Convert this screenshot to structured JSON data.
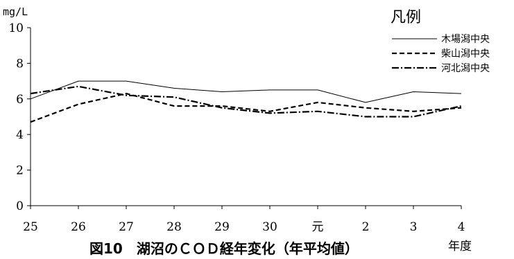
{
  "chart_data": {
    "type": "line",
    "title": "図10　湖沼のＣＯＤ経年変化（年平均値）",
    "ylabel": "mg/L",
    "xlabel": "年度",
    "ylim": [
      0,
      10
    ],
    "yticks": [
      0,
      2,
      4,
      6,
      8,
      10
    ],
    "grid": false,
    "legend_title": "凡例",
    "legend_position": "top-right",
    "categories": [
      "25",
      "26",
      "27",
      "28",
      "29",
      "30",
      "元",
      "2",
      "3",
      "4"
    ],
    "series": [
      {
        "name": "木場潟中央",
        "style": "solid",
        "color": "#000000",
        "values": [
          6.0,
          7.0,
          7.0,
          6.6,
          6.4,
          6.5,
          6.5,
          5.8,
          6.4,
          6.3
        ]
      },
      {
        "name": "柴山潟中央",
        "style": "dashed",
        "color": "#000000",
        "values": [
          4.7,
          5.7,
          6.3,
          5.6,
          5.6,
          5.3,
          5.8,
          5.5,
          5.3,
          5.5
        ]
      },
      {
        "name": "河北潟中央",
        "style": "dashdot",
        "color": "#000000",
        "values": [
          6.3,
          6.7,
          6.2,
          6.1,
          5.5,
          5.2,
          5.3,
          5.0,
          5.0,
          5.6
        ]
      }
    ]
  }
}
